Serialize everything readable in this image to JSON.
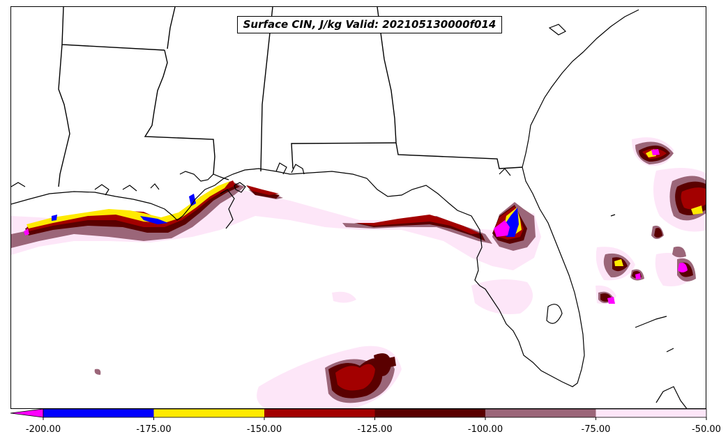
{
  "title": "Surface CIN, J/kg Valid: 202105130000f014",
  "colorbar": {
    "extend": "min",
    "extend_color": "#ff00ff",
    "bins": [
      {
        "from": -200,
        "to": -175,
        "color": "#0000ff"
      },
      {
        "from": -175,
        "to": -150,
        "color": "#ffea00"
      },
      {
        "from": -150,
        "to": -125,
        "color": "#a30000"
      },
      {
        "from": -125,
        "to": -100,
        "color": "#5a0000"
      },
      {
        "from": -100,
        "to": -75,
        "color": "#9b6679"
      },
      {
        "from": -75,
        "to": -50,
        "color": "#fde6f8"
      }
    ],
    "tick_labels": [
      "-200.00",
      "-175.00",
      "-150.00",
      "-125.00",
      "-100.00",
      "-75.00",
      "-50.00"
    ]
  },
  "map": {
    "region": "Southeastern United States and Gulf of Mexico",
    "boundaries": [
      "coastlines",
      "state borders"
    ]
  }
}
